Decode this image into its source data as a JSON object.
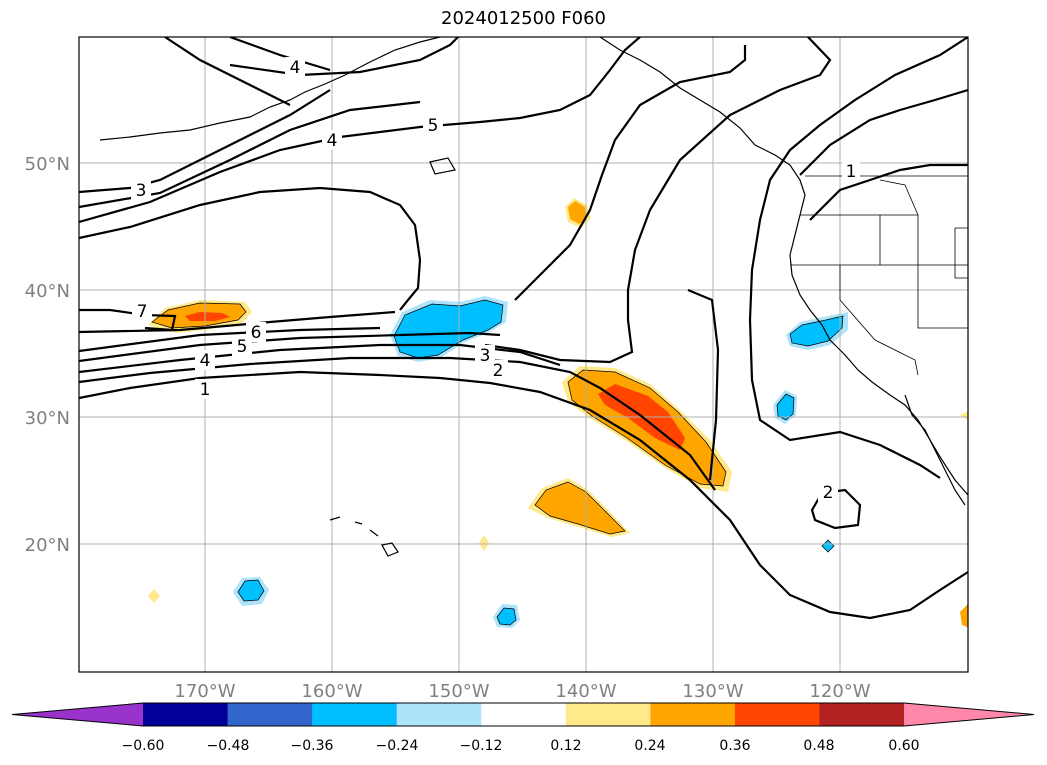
{
  "title": "2024012500 F060",
  "map": {
    "lat_labels": [
      "50°N",
      "40°N",
      "30°N",
      "20°N"
    ],
    "lon_labels": [
      "170°W",
      "160°W",
      "150°W",
      "140°W",
      "130°W",
      "120°W"
    ],
    "contour_labels": [
      "4",
      "4",
      "5",
      "3",
      "7",
      "6",
      "5",
      "4",
      "1",
      "3",
      "2",
      "2",
      "1"
    ]
  },
  "colorbar": {
    "ticks": [
      "−0.60",
      "−0.48",
      "−0.36",
      "−0.24",
      "−0.12",
      "0.12",
      "0.24",
      "0.36",
      "0.48",
      "0.60"
    ],
    "colors": [
      "#9933cc",
      "#000099",
      "#3366cc",
      "#00bfff",
      "#aee4fb",
      "#ffffff",
      "#ffe98a",
      "#ffa500",
      "#ff4500",
      "#b22222",
      "#ff88aa"
    ]
  }
}
